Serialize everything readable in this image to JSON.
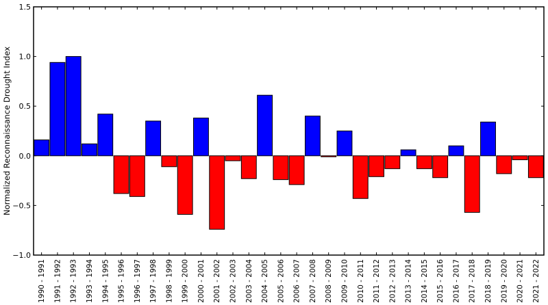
{
  "chart_data": {
    "type": "bar",
    "title": "",
    "xlabel": "",
    "ylabel": "Normalized Reconnaissance Drought Index",
    "ylim": [
      -1.0,
      1.5
    ],
    "yticks": [
      -1.0,
      -0.5,
      0.0,
      0.5,
      1.0,
      1.5
    ],
    "ytick_labels": [
      "−1.0",
      "−0.5",
      "0.0",
      "0.5",
      "1.0",
      "1.5"
    ],
    "grid": false,
    "legend": null,
    "positive_color": "#0000ff",
    "negative_color": "#ff0000",
    "edge_color": "#000000",
    "categories": [
      "1990 - 1991",
      "1991 - 1992",
      "1992 - 1993",
      "1993 - 1994",
      "1994 - 1995",
      "1995 - 1996",
      "1996 - 1997",
      "1997 - 1998",
      "1998 - 1999",
      "1999 - 2000",
      "2000 - 2001",
      "2001 - 2002",
      "2002 - 2003",
      "2003 - 2004",
      "2004 - 2005",
      "2005 - 2006",
      "2006 - 2007",
      "2007 - 2008",
      "2008 - 2009",
      "2009 - 2010",
      "2010 - 2011",
      "2011 - 2012",
      "2012 - 2013",
      "2013 - 2014",
      "2014 - 2015",
      "2015 - 2016",
      "2016 - 2017",
      "2017 - 2018",
      "2018 - 2019",
      "2019 - 2020",
      "2020 - 2021",
      "2021 - 2022"
    ],
    "values": [
      0.16,
      0.94,
      1.0,
      0.12,
      0.42,
      -0.38,
      -0.41,
      0.35,
      -0.11,
      -0.59,
      0.38,
      -0.74,
      -0.05,
      -0.23,
      0.61,
      -0.24,
      -0.29,
      0.4,
      -0.01,
      0.25,
      -0.43,
      -0.21,
      -0.13,
      0.06,
      -0.13,
      -0.22,
      0.1,
      -0.57,
      0.34,
      -0.18,
      -0.04,
      -0.22
    ]
  }
}
